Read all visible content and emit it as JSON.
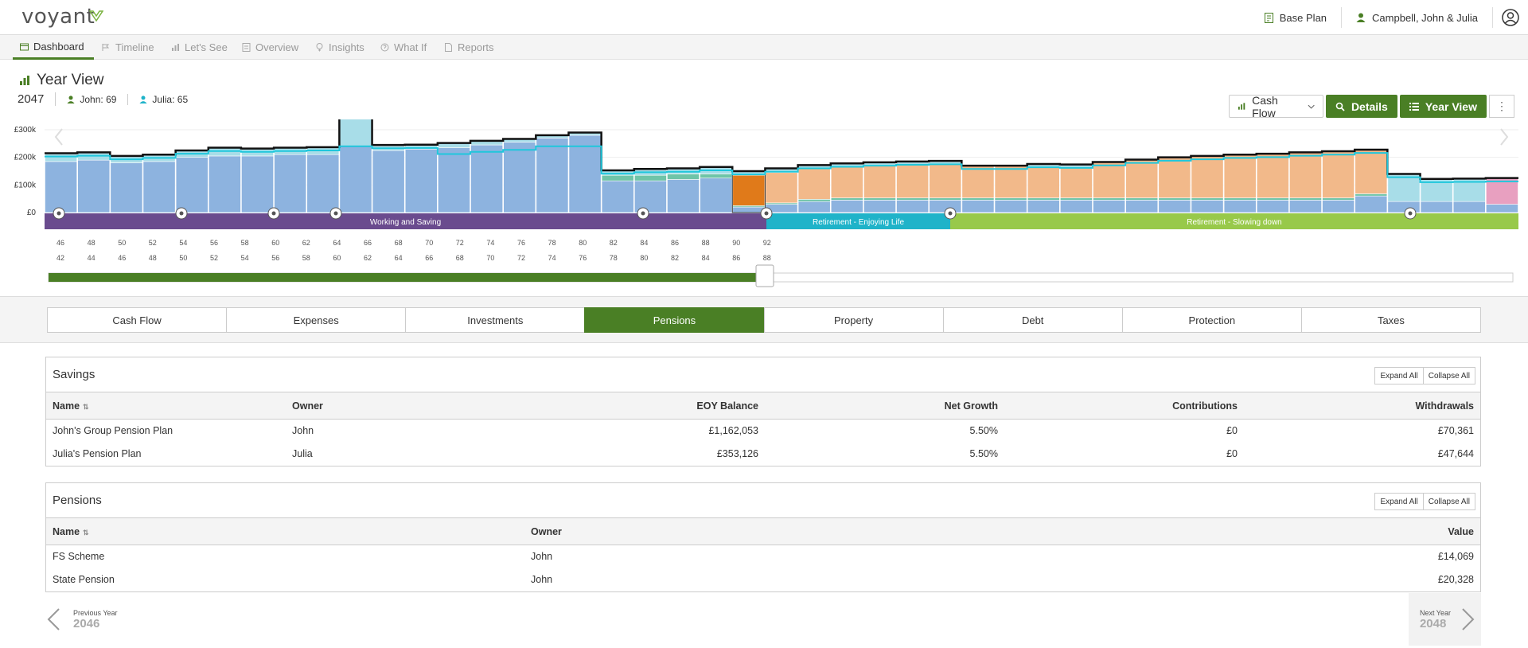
{
  "brand": {
    "name": "voyant",
    "accent": "#4a7f25"
  },
  "header": {
    "plan_label": "Base Plan",
    "client_label": "Campbell, John & Julia"
  },
  "nav": [
    {
      "label": "Dashboard",
      "icon": "dashboard-icon",
      "active": true
    },
    {
      "label": "Timeline",
      "icon": "timeline-icon"
    },
    {
      "label": "Let's See",
      "icon": "bar-chart-icon"
    },
    {
      "label": "Overview",
      "icon": "overview-icon"
    },
    {
      "label": "Insights",
      "icon": "lightbulb-icon"
    },
    {
      "label": "What If",
      "icon": "whatif-icon"
    },
    {
      "label": "Reports",
      "icon": "reports-icon"
    }
  ],
  "view": {
    "title": "Year View",
    "year": "2047",
    "john": "John: 69",
    "julia": "Julia: 65"
  },
  "toolbar": {
    "select_value": "Cash Flow",
    "details_label": "Details",
    "yearview_label": "Year View",
    "more_label": "⋮"
  },
  "chart_data": {
    "type": "bar",
    "y_ticks": [
      "£0",
      "£100k",
      "£200k",
      "£300k"
    ],
    "ylim": [
      0,
      300000
    ],
    "x_ages_john": [
      "46",
      "48",
      "50",
      "52",
      "54",
      "56",
      "58",
      "60",
      "62",
      "64",
      "66",
      "68",
      "70",
      "72",
      "74",
      "76",
      "78",
      "80",
      "82",
      "84",
      "86",
      "88",
      "90",
      "92"
    ],
    "x_ages_julia": [
      "42",
      "44",
      "46",
      "48",
      "50",
      "52",
      "54",
      "56",
      "58",
      "60",
      "62",
      "64",
      "66",
      "68",
      "70",
      "72",
      "74",
      "76",
      "78",
      "80",
      "82",
      "84",
      "86",
      "88"
    ],
    "phases": [
      {
        "label": "Working and Saving",
        "color": "#6a4b8e"
      },
      {
        "label": "Retirement - Enjoying Life",
        "color": "#1fb3c9"
      },
      {
        "label": "Retirement - Slowing down",
        "color": "#98c94a"
      }
    ],
    "bars": [
      {
        "total": 215000,
        "blue": 185000,
        "teal": 0,
        "orange": 0,
        "pink": 0,
        "light": 30000
      },
      {
        "total": 218000,
        "blue": 190000,
        "teal": 0,
        "orange": 0,
        "pink": 0,
        "light": 28000
      },
      {
        "total": 205000,
        "blue": 180000,
        "teal": 0,
        "orange": 0,
        "pink": 0,
        "light": 25000
      },
      {
        "total": 210000,
        "blue": 185000,
        "teal": 0,
        "orange": 0,
        "pink": 0,
        "light": 25000
      },
      {
        "total": 225000,
        "blue": 200000,
        "teal": 0,
        "orange": 0,
        "pink": 0,
        "light": 25000
      },
      {
        "total": 235000,
        "blue": 205000,
        "teal": 0,
        "orange": 0,
        "pink": 0,
        "light": 30000
      },
      {
        "total": 232000,
        "blue": 205000,
        "teal": 0,
        "orange": 0,
        "pink": 0,
        "light": 27000
      },
      {
        "total": 235000,
        "blue": 210000,
        "teal": 0,
        "orange": 0,
        "pink": 0,
        "light": 25000
      },
      {
        "total": 237000,
        "blue": 210000,
        "teal": 0,
        "orange": 0,
        "pink": 0,
        "light": 27000
      },
      {
        "total": 355000,
        "blue": 240000,
        "teal": 0,
        "orange": 0,
        "pink": 0,
        "light": 115000
      },
      {
        "total": 245000,
        "blue": 225000,
        "teal": 0,
        "orange": 0,
        "pink": 0,
        "light": 20000
      },
      {
        "total": 246000,
        "blue": 230000,
        "teal": 0,
        "orange": 0,
        "pink": 0,
        "light": 16000
      },
      {
        "total": 252000,
        "blue": 235000,
        "teal": 0,
        "orange": 0,
        "pink": 0,
        "light": 17000
      },
      {
        "total": 260000,
        "blue": 245000,
        "teal": 0,
        "orange": 0,
        "pink": 0,
        "light": 15000
      },
      {
        "total": 267000,
        "blue": 255000,
        "teal": 0,
        "orange": 0,
        "pink": 0,
        "light": 12000
      },
      {
        "total": 280000,
        "blue": 270000,
        "teal": 0,
        "orange": 0,
        "pink": 0,
        "light": 10000
      },
      {
        "total": 290000,
        "blue": 280000,
        "teal": 0,
        "orange": 0,
        "pink": 0,
        "light": 10000
      },
      {
        "total": 153000,
        "blue": 115000,
        "teal": 20000,
        "orange": 0,
        "pink": 0,
        "light": 18000
      },
      {
        "total": 158000,
        "blue": 115000,
        "teal": 20000,
        "orange": 0,
        "pink": 0,
        "light": 23000
      },
      {
        "total": 160000,
        "blue": 120000,
        "teal": 20000,
        "orange": 0,
        "pink": 0,
        "light": 20000
      },
      {
        "total": 165000,
        "blue": 125000,
        "teal": 15000,
        "orange": 0,
        "pink": 0,
        "light": 25000
      },
      {
        "total": 150000,
        "blue": 20000,
        "teal": 5000,
        "orange": 110000,
        "pink": 0,
        "light": 15000
      },
      {
        "total": 160000,
        "blue": 30000,
        "teal": 5000,
        "orange": 110000,
        "pink": 0,
        "light": 15000
      },
      {
        "total": 172000,
        "blue": 40000,
        "teal": 8000,
        "orange": 112000,
        "pink": 0,
        "light": 12000
      },
      {
        "total": 178000,
        "blue": 45000,
        "teal": 8000,
        "orange": 115000,
        "pink": 0,
        "light": 10000
      },
      {
        "total": 182000,
        "blue": 45000,
        "teal": 8000,
        "orange": 119000,
        "pink": 0,
        "light": 10000
      },
      {
        "total": 185000,
        "blue": 45000,
        "teal": 8000,
        "orange": 122000,
        "pink": 0,
        "light": 10000
      },
      {
        "total": 187000,
        "blue": 45000,
        "teal": 8000,
        "orange": 124000,
        "pink": 0,
        "light": 10000
      },
      {
        "total": 170000,
        "blue": 45000,
        "teal": 8000,
        "orange": 117000,
        "pink": 0,
        "light": 0
      },
      {
        "total": 170000,
        "blue": 45000,
        "teal": 8000,
        "orange": 117000,
        "pink": 0,
        "light": 0
      },
      {
        "total": 176000,
        "blue": 45000,
        "teal": 8000,
        "orange": 113000,
        "pink": 0,
        "light": 10000
      },
      {
        "total": 174000,
        "blue": 45000,
        "teal": 8000,
        "orange": 111000,
        "pink": 0,
        "light": 10000
      },
      {
        "total": 183000,
        "blue": 45000,
        "teal": 8000,
        "orange": 130000,
        "pink": 0,
        "light": 0
      },
      {
        "total": 192000,
        "blue": 45000,
        "teal": 8000,
        "orange": 139000,
        "pink": 0,
        "light": 0
      },
      {
        "total": 200000,
        "blue": 45000,
        "teal": 8000,
        "orange": 147000,
        "pink": 0,
        "light": 0
      },
      {
        "total": 205000,
        "blue": 45000,
        "teal": 8000,
        "orange": 152000,
        "pink": 0,
        "light": 0
      },
      {
        "total": 210000,
        "blue": 45000,
        "teal": 8000,
        "orange": 157000,
        "pink": 0,
        "light": 0
      },
      {
        "total": 213000,
        "blue": 45000,
        "teal": 8000,
        "orange": 160000,
        "pink": 0,
        "light": 0
      },
      {
        "total": 218000,
        "blue": 45000,
        "teal": 8000,
        "orange": 165000,
        "pink": 0,
        "light": 0
      },
      {
        "total": 222000,
        "blue": 45000,
        "teal": 8000,
        "orange": 169000,
        "pink": 0,
        "light": 0
      },
      {
        "total": 228000,
        "blue": 60000,
        "teal": 8000,
        "orange": 160000,
        "pink": 0,
        "light": 0
      },
      {
        "total": 140000,
        "blue": 40000,
        "teal": 0,
        "orange": 0,
        "pink": 0,
        "light": 100000
      },
      {
        "total": 122000,
        "blue": 40000,
        "teal": 0,
        "orange": 0,
        "pink": 0,
        "light": 82000
      },
      {
        "total": 123000,
        "blue": 40000,
        "teal": 0,
        "orange": 0,
        "pink": 0,
        "light": 83000
      },
      {
        "total": 125000,
        "blue": 30000,
        "teal": 0,
        "orange": 0,
        "pink": 95000,
        "light": 0
      }
    ]
  },
  "tabs": [
    {
      "label": "Cash Flow"
    },
    {
      "label": "Expenses"
    },
    {
      "label": "Investments"
    },
    {
      "label": "Pensions",
      "active": true
    },
    {
      "label": "Property"
    },
    {
      "label": "Debt"
    },
    {
      "label": "Protection"
    },
    {
      "label": "Taxes"
    }
  ],
  "savings": {
    "title": "Savings",
    "expand_all": "Expand All",
    "collapse_all": "Collapse All",
    "columns": [
      "Name",
      "Owner",
      "EOY Balance",
      "Net Growth",
      "Contributions",
      "Withdrawals"
    ],
    "rows": [
      [
        "John's Group Pension Plan",
        "John",
        "£1,162,053",
        "5.50%",
        "£0",
        "£70,361"
      ],
      [
        "Julia's Pension Plan",
        "Julia",
        "£353,126",
        "5.50%",
        "£0",
        "£47,644"
      ]
    ]
  },
  "pensions": {
    "title": "Pensions",
    "expand_all": "Expand All",
    "collapse_all": "Collapse All",
    "columns": [
      "Name",
      "Owner",
      "Value"
    ],
    "rows": [
      [
        "FS Scheme",
        "John",
        "£14,069"
      ],
      [
        "State Pension",
        "John",
        "£20,328"
      ]
    ]
  },
  "yearnav": {
    "prev_label": "Previous Year",
    "prev_year": "2046",
    "next_label": "Next Year",
    "next_year": "2048"
  }
}
